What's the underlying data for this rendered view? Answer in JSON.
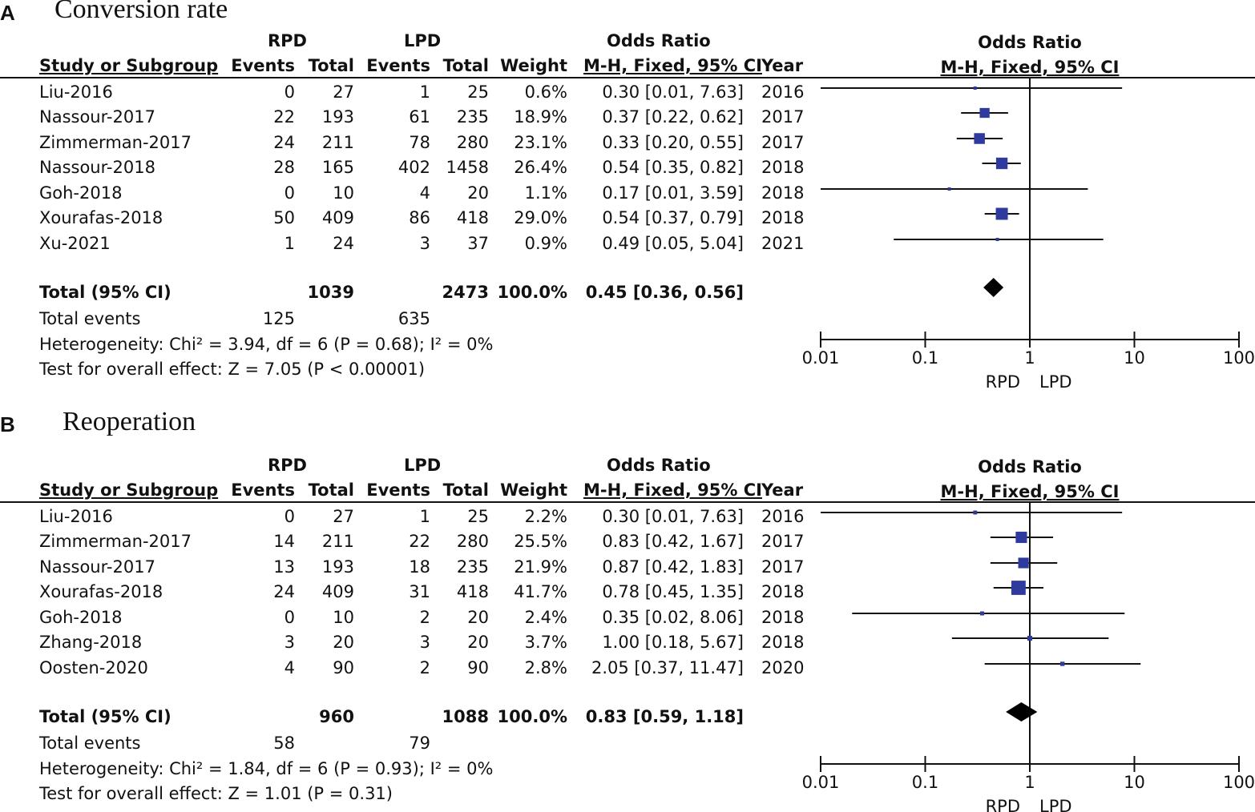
{
  "colors": {
    "marker": "#2e3a9e",
    "line": "#111111",
    "diamond": "#000000"
  },
  "columns": {
    "group_rpd": "RPD",
    "group_lpd": "LPD",
    "odds_ratio": "Odds Ratio",
    "study": "Study or Subgroup",
    "events": "Events",
    "total": "Total",
    "weight": "Weight",
    "method": "M-H, Fixed, 95% CI",
    "year": "Year"
  },
  "panels": [
    {
      "letter": "A",
      "title": "Conversion rate",
      "rows": [
        {
          "study": "Liu-2016",
          "rpd_events": "0",
          "rpd_total": "27",
          "lpd_events": "1",
          "lpd_total": "25",
          "weight": "0.6%",
          "ci": "0.30 [0.01, 7.63]",
          "year": "2016"
        },
        {
          "study": "Nassour-2017",
          "rpd_events": "22",
          "rpd_total": "193",
          "lpd_events": "61",
          "lpd_total": "235",
          "weight": "18.9%",
          "ci": "0.37 [0.22, 0.62]",
          "year": "2017"
        },
        {
          "study": "Zimmerman-2017",
          "rpd_events": "24",
          "rpd_total": "211",
          "lpd_events": "78",
          "lpd_total": "280",
          "weight": "23.1%",
          "ci": "0.33 [0.20, 0.55]",
          "year": "2017"
        },
        {
          "study": "Nassour-2018",
          "rpd_events": "28",
          "rpd_total": "165",
          "lpd_events": "402",
          "lpd_total": "1458",
          "weight": "26.4%",
          "ci": "0.54 [0.35, 0.82]",
          "year": "2018"
        },
        {
          "study": "Goh-2018",
          "rpd_events": "0",
          "rpd_total": "10",
          "lpd_events": "4",
          "lpd_total": "20",
          "weight": "1.1%",
          "ci": "0.17 [0.01, 3.59]",
          "year": "2018"
        },
        {
          "study": "Xourafas-2018",
          "rpd_events": "50",
          "rpd_total": "409",
          "lpd_events": "86",
          "lpd_total": "418",
          "weight": "29.0%",
          "ci": "0.54 [0.37, 0.79]",
          "year": "2018"
        },
        {
          "study": "Xu-2021",
          "rpd_events": "1",
          "rpd_total": "24",
          "lpd_events": "3",
          "lpd_total": "37",
          "weight": "0.9%",
          "ci": "0.49 [0.05, 5.04]",
          "year": "2021"
        }
      ],
      "total": {
        "label": "Total (95% CI)",
        "rpd_total": "1039",
        "lpd_total": "2473",
        "weight": "100.0%",
        "ci": "0.45 [0.36, 0.56]"
      },
      "events": {
        "label": "Total events",
        "rpd": "125",
        "lpd": "635"
      },
      "heterogeneity": "Heterogeneity: Chi² = 3.94, df = 6 (P = 0.68); I² = 0%",
      "overall": "Test for overall effect: Z = 7.05 (P < 0.00001)"
    },
    {
      "letter": "B",
      "title": "Reoperation",
      "rows": [
        {
          "study": "Liu-2016",
          "rpd_events": "0",
          "rpd_total": "27",
          "lpd_events": "1",
          "lpd_total": "25",
          "weight": "2.2%",
          "ci": "0.30 [0.01, 7.63]",
          "year": "2016"
        },
        {
          "study": "Zimmerman-2017",
          "rpd_events": "14",
          "rpd_total": "211",
          "lpd_events": "22",
          "lpd_total": "280",
          "weight": "25.5%",
          "ci": "0.83 [0.42, 1.67]",
          "year": "2017"
        },
        {
          "study": "Nassour-2017",
          "rpd_events": "13",
          "rpd_total": "193",
          "lpd_events": "18",
          "lpd_total": "235",
          "weight": "21.9%",
          "ci": "0.87 [0.42, 1.83]",
          "year": "2017"
        },
        {
          "study": "Xourafas-2018",
          "rpd_events": "24",
          "rpd_total": "409",
          "lpd_events": "31",
          "lpd_total": "418",
          "weight": "41.7%",
          "ci": "0.78 [0.45, 1.35]",
          "year": "2018"
        },
        {
          "study": "Goh-2018",
          "rpd_events": "0",
          "rpd_total": "10",
          "lpd_events": "2",
          "lpd_total": "20",
          "weight": "2.4%",
          "ci": "0.35 [0.02, 8.06]",
          "year": "2018"
        },
        {
          "study": "Zhang-2018",
          "rpd_events": "3",
          "rpd_total": "20",
          "lpd_events": "3",
          "lpd_total": "20",
          "weight": "3.7%",
          "ci": "1.00 [0.18, 5.67]",
          "year": "2018"
        },
        {
          "study": "Oosten-2020",
          "rpd_events": "4",
          "rpd_total": "90",
          "lpd_events": "2",
          "lpd_total": "90",
          "weight": "2.8%",
          "ci": "2.05 [0.37, 11.47]",
          "year": "2020"
        }
      ],
      "total": {
        "label": "Total (95% CI)",
        "rpd_total": "960",
        "lpd_total": "1088",
        "weight": "100.0%",
        "ci": "0.83 [0.59, 1.18]"
      },
      "events": {
        "label": "Total events",
        "rpd": "58",
        "lpd": "79"
      },
      "heterogeneity": "Heterogeneity: Chi² = 1.84, df = 6 (P = 0.93); I² = 0%",
      "overall": "Test for overall effect: Z = 1.01 (P = 0.31)"
    }
  ],
  "chart_data": [
    {
      "type": "forest",
      "title": "Conversion rate",
      "plot_title": "Odds Ratio",
      "plot_subtitle": "M-H, Fixed, 95% CI",
      "scale": "log",
      "xlim": [
        0.01,
        100
      ],
      "ticks": [
        0.01,
        0.1,
        1,
        10,
        100
      ],
      "tick_labels": [
        "0.01",
        "0.1",
        "1",
        "10",
        "100"
      ],
      "favours_left": "RPD",
      "favours_right": "LPD",
      "studies": [
        {
          "name": "Liu-2016",
          "or": 0.3,
          "lo": 0.01,
          "hi": 7.63,
          "weight": 0.6
        },
        {
          "name": "Nassour-2017",
          "or": 0.37,
          "lo": 0.22,
          "hi": 0.62,
          "weight": 18.9
        },
        {
          "name": "Zimmerman-2017",
          "or": 0.33,
          "lo": 0.2,
          "hi": 0.55,
          "weight": 23.1
        },
        {
          "name": "Nassour-2018",
          "or": 0.54,
          "lo": 0.35,
          "hi": 0.82,
          "weight": 26.4
        },
        {
          "name": "Goh-2018",
          "or": 0.17,
          "lo": 0.01,
          "hi": 3.59,
          "weight": 1.1
        },
        {
          "name": "Xourafas-2018",
          "or": 0.54,
          "lo": 0.37,
          "hi": 0.79,
          "weight": 29.0
        },
        {
          "name": "Xu-2021",
          "or": 0.49,
          "lo": 0.05,
          "hi": 5.04,
          "weight": 0.9
        }
      ],
      "pooled": {
        "or": 0.45,
        "lo": 0.36,
        "hi": 0.56
      }
    },
    {
      "type": "forest",
      "title": "Reoperation",
      "plot_title": "Odds Ratio",
      "plot_subtitle": "M-H, Fixed, 95% CI",
      "scale": "log",
      "xlim": [
        0.01,
        100
      ],
      "ticks": [
        0.01,
        0.1,
        1,
        10,
        100
      ],
      "tick_labels": [
        "0.01",
        "0.1",
        "1",
        "10",
        "100"
      ],
      "favours_left": "RPD",
      "favours_right": "LPD",
      "studies": [
        {
          "name": "Liu-2016",
          "or": 0.3,
          "lo": 0.01,
          "hi": 7.63,
          "weight": 2.2
        },
        {
          "name": "Zimmerman-2017",
          "or": 0.83,
          "lo": 0.42,
          "hi": 1.67,
          "weight": 25.5
        },
        {
          "name": "Nassour-2017",
          "or": 0.87,
          "lo": 0.42,
          "hi": 1.83,
          "weight": 21.9
        },
        {
          "name": "Xourafas-2018",
          "or": 0.78,
          "lo": 0.45,
          "hi": 1.35,
          "weight": 41.7
        },
        {
          "name": "Goh-2018",
          "or": 0.35,
          "lo": 0.02,
          "hi": 8.06,
          "weight": 2.4
        },
        {
          "name": "Zhang-2018",
          "or": 1.0,
          "lo": 0.18,
          "hi": 5.67,
          "weight": 3.7
        },
        {
          "name": "Oosten-2020",
          "or": 2.05,
          "lo": 0.37,
          "hi": 11.47,
          "weight": 2.8
        }
      ],
      "pooled": {
        "or": 0.83,
        "lo": 0.59,
        "hi": 1.18
      }
    }
  ]
}
